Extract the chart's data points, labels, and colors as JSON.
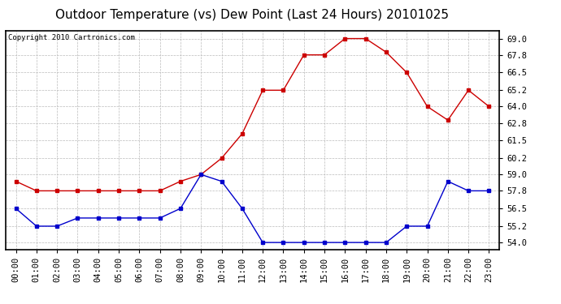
{
  "title": "Outdoor Temperature (vs) Dew Point (Last 24 Hours) 20101025",
  "copyright": "Copyright 2010 Cartronics.com",
  "hours": [
    "00:00",
    "01:00",
    "02:00",
    "03:00",
    "04:00",
    "05:00",
    "06:00",
    "07:00",
    "08:00",
    "09:00",
    "10:00",
    "11:00",
    "12:00",
    "13:00",
    "14:00",
    "15:00",
    "16:00",
    "17:00",
    "18:00",
    "19:00",
    "20:00",
    "21:00",
    "22:00",
    "23:00"
  ],
  "temp": [
    58.5,
    57.8,
    57.8,
    57.8,
    57.8,
    57.8,
    57.8,
    57.8,
    58.5,
    59.0,
    60.2,
    62.0,
    65.2,
    65.2,
    67.8,
    67.8,
    69.0,
    69.0,
    68.0,
    66.5,
    64.0,
    63.0,
    65.2,
    64.0
  ],
  "dew": [
    56.5,
    55.2,
    55.2,
    55.8,
    55.8,
    55.8,
    55.8,
    55.8,
    56.5,
    59.0,
    58.5,
    56.5,
    54.0,
    54.0,
    54.0,
    54.0,
    54.0,
    54.0,
    54.0,
    55.2,
    55.2,
    58.5,
    57.8,
    57.8
  ],
  "temp_color": "#cc0000",
  "dew_color": "#0000cc",
  "bg_color": "#ffffff",
  "plot_bg_color": "#ffffff",
  "grid_color": "#bbbbbb",
  "ylim_min": 53.5,
  "ylim_max": 69.6,
  "yticks": [
    54.0,
    55.2,
    56.5,
    57.8,
    59.0,
    60.2,
    61.5,
    62.8,
    64.0,
    65.2,
    66.5,
    67.8,
    69.0
  ],
  "title_fontsize": 11,
  "copyright_fontsize": 6.5,
  "tick_fontsize": 7.5
}
